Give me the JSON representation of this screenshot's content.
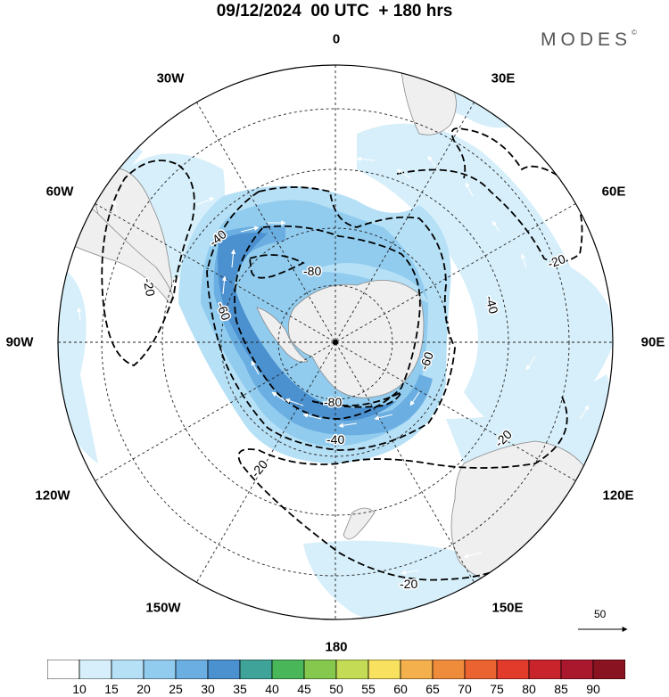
{
  "header": {
    "title": "09/12/2024  00 UTC  + 180 hrs",
    "brand": "MODES",
    "brand_mark": "©"
  },
  "map": {
    "projection": "south-polar-stereographic",
    "longitude_labels": {
      "top": "0",
      "bottom": "180",
      "left": "90W",
      "right": "90E",
      "upper_left_30": "30W",
      "upper_left_60": "60W",
      "upper_right_30": "30E",
      "upper_right_60": "60E",
      "lower_left_120": "120W",
      "lower_left_150": "150W",
      "lower_right_120": "120E",
      "lower_right_150": "150E"
    },
    "contour_labels": [
      "-80",
      "-80",
      "-60",
      "-60",
      "-40",
      "-40",
      "-40",
      "-20",
      "-20",
      "-20",
      "-20",
      "-20"
    ],
    "vector_reference": "50",
    "colors": {
      "land": "#efefef",
      "coast": "#888888",
      "grid": "#222222",
      "contour": "#000000",
      "arrow": "#ffffff"
    }
  },
  "colorbar": {
    "ticks": [
      "10",
      "15",
      "20",
      "25",
      "30",
      "35",
      "40",
      "45",
      "50",
      "55",
      "60",
      "65",
      "70",
      "75",
      "80",
      "85",
      "90"
    ],
    "colors": [
      "#ffffff",
      "#d6effa",
      "#b6e0f6",
      "#91ccef",
      "#6aaee2",
      "#4b90cf",
      "#3fa39a",
      "#4ab65a",
      "#86c74d",
      "#c4dc55",
      "#f7e15f",
      "#f4b04c",
      "#ef8c3c",
      "#ea6330",
      "#e23b2b",
      "#c9242c",
      "#a9182c",
      "#8a1322"
    ]
  }
}
